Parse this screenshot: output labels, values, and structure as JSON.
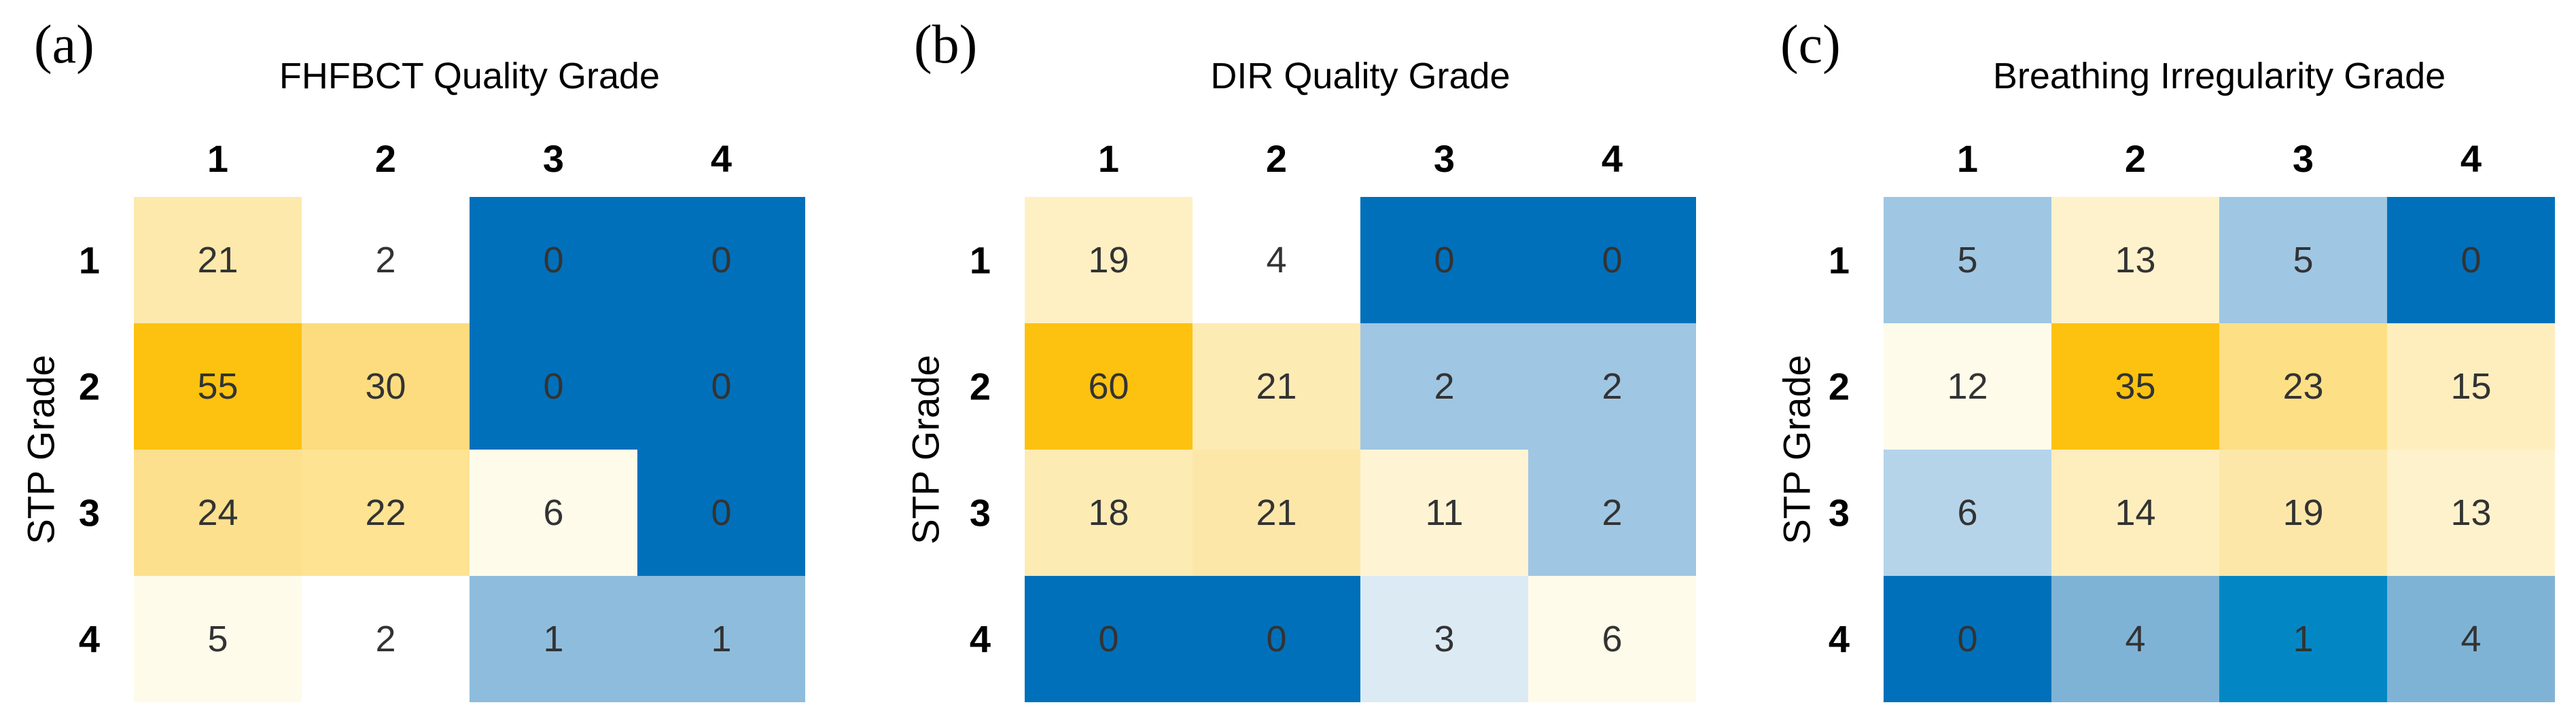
{
  "chart_data": [
    {
      "type": "heatmap",
      "panel_label": "(a)",
      "title": "FHFBCT Quality Grade",
      "ylabel": "STP Grade",
      "columns": [
        "1",
        "2",
        "3",
        "4"
      ],
      "rows": [
        "1",
        "2",
        "3",
        "4"
      ],
      "values": [
        [
          21,
          2,
          0,
          0
        ],
        [
          55,
          30,
          0,
          0
        ],
        [
          24,
          22,
          6,
          0
        ],
        [
          5,
          2,
          1,
          1
        ]
      ],
      "cell_colors": [
        [
          "#fde9ac",
          "#ffffff",
          "#0070ba",
          "#0070ba"
        ],
        [
          "#fdc20f",
          "#fddc7f",
          "#0070ba",
          "#0070ba"
        ],
        [
          "#fde08d",
          "#fde392",
          "#fefbeb",
          "#0070ba"
        ],
        [
          "#fefbeb",
          "#ffffff",
          "#8ebcdc",
          "#8ebcdc"
        ]
      ]
    },
    {
      "type": "heatmap",
      "panel_label": "(b)",
      "title": "DIR Quality Grade",
      "ylabel": "STP Grade",
      "columns": [
        "1",
        "2",
        "3",
        "4"
      ],
      "rows": [
        "1",
        "2",
        "3",
        "4"
      ],
      "values": [
        [
          19,
          4,
          0,
          0
        ],
        [
          60,
          21,
          2,
          2
        ],
        [
          18,
          21,
          11,
          2
        ],
        [
          0,
          0,
          3,
          6
        ]
      ],
      "cell_colors": [
        [
          "#fef0c3",
          "#ffffff",
          "#0070ba",
          "#0070ba"
        ],
        [
          "#fdc20f",
          "#fdebb4",
          "#9fc6e3",
          "#9fc6e3"
        ],
        [
          "#fdebb4",
          "#fde7a8",
          "#fef4d4",
          "#9fc6e3"
        ],
        [
          "#0070ba",
          "#0070ba",
          "#dceaf4",
          "#fefbeb"
        ]
      ]
    },
    {
      "type": "heatmap",
      "panel_label": "(c)",
      "title": "Breathing Irregularity Grade",
      "ylabel": "STP Grade",
      "columns": [
        "1",
        "2",
        "3",
        "4"
      ],
      "rows": [
        "1",
        "2",
        "3",
        "4"
      ],
      "values": [
        [
          5,
          13,
          5,
          0
        ],
        [
          12,
          35,
          23,
          15
        ],
        [
          6,
          14,
          19,
          13
        ],
        [
          0,
          4,
          1,
          4
        ]
      ],
      "cell_colors": [
        [
          "#9fc6e3",
          "#fef2cc",
          "#9fc6e3",
          "#0070ba"
        ],
        [
          "#fffbea",
          "#fdc20f",
          "#fddf85",
          "#feeebd"
        ],
        [
          "#b5d4ea",
          "#feeebd",
          "#fde7a8",
          "#fef2cc"
        ],
        [
          "#0070ba",
          "#7fb3d6",
          "#0387c4",
          "#7fb3d6"
        ]
      ]
    }
  ]
}
